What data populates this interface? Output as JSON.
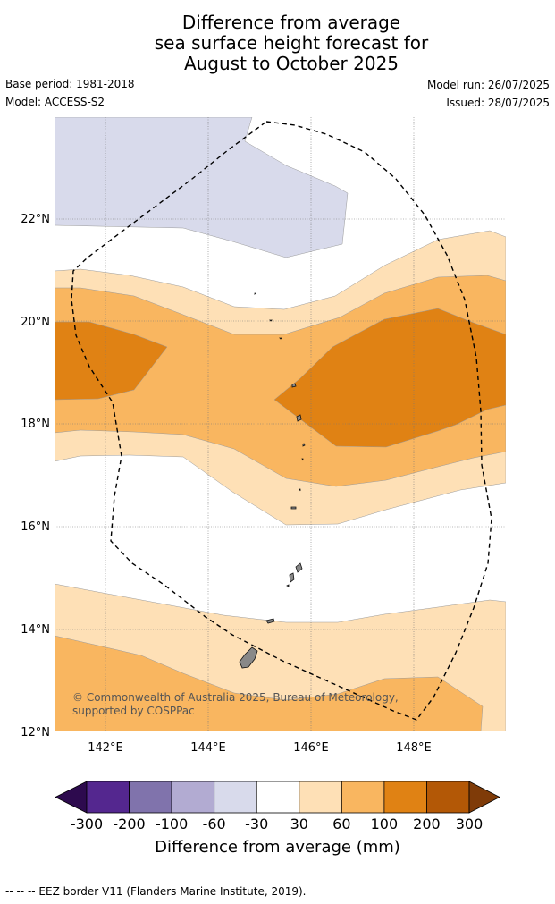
{
  "title_lines": [
    "Difference from average",
    "sea surface height forecast for",
    "August to October 2025"
  ],
  "base_period": "Base period: 1981-2018",
  "model": "Model: ACCESS-S2",
  "model_run": "Model run: 26/07/2025",
  "issued": "Issued: 28/07/2025",
  "map": {
    "lon_range": [
      141.0,
      149.8
    ],
    "lat_range": [
      12.0,
      24.0
    ],
    "lon_ticks": [
      "142°E",
      "144°E",
      "146°E",
      "148°E"
    ],
    "lat_ticks": [
      "12°N",
      "14°N",
      "16°N",
      "18°N",
      "20°N",
      "22°N"
    ],
    "grid": true,
    "eez_border": "dashed",
    "copyright": "© Commonwealth of Australia 2025, Bureau of Meteorology, supported by COSPPac"
  },
  "colorbar": {
    "tick_labels": [
      "-300",
      "-200",
      "-100",
      "-60",
      "-30",
      "30",
      "60",
      "100",
      "200",
      "300"
    ],
    "colors": [
      "#2d0a4e",
      "#54278f",
      "#8073ac",
      "#b2abd2",
      "#d8daeb",
      "#ffffff",
      "#fee0b6",
      "#f9b660",
      "#e08214",
      "#b35806",
      "#7f3b08"
    ],
    "label": "Difference from average (mm)",
    "extend": "both"
  },
  "footnote": "--  --  -- EEZ border V11 (Flanders Marine Institute, 2019)."
}
